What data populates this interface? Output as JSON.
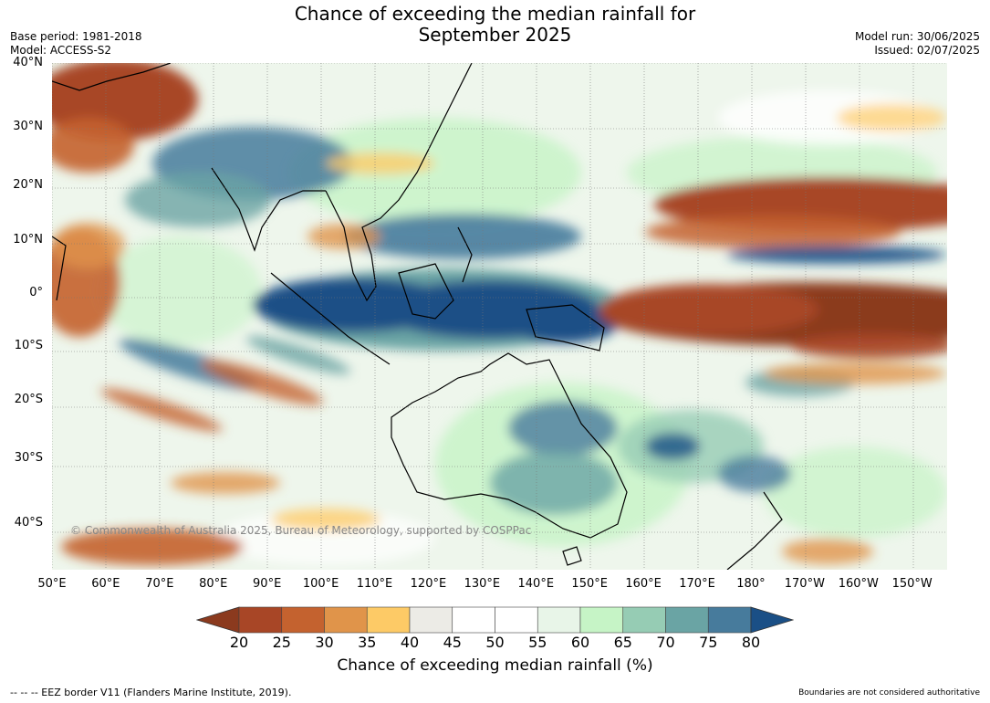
{
  "title_line1": "Chance of exceeding the median rainfall for",
  "title_line2": "September 2025",
  "meta_left": [
    "Base period: 1981-2018",
    "Model: ACCESS-S2"
  ],
  "meta_right": [
    "Model run: 30/06/2025",
    "Issued: 02/07/2025"
  ],
  "copyright": "© Commonwealth of Australia 2025, Bureau of Meteorology, supported by COSPPac",
  "lat_labels": [
    "40°N",
    "30°N",
    "20°N",
    "10°N",
    "0°",
    "10°S",
    "20°S",
    "30°S",
    "40°S"
  ],
  "lat_values": [
    40,
    30,
    20,
    10,
    0,
    -10,
    -20,
    -30,
    -40
  ],
  "lon_labels": [
    "50°E",
    "60°E",
    "70°E",
    "80°E",
    "90°E",
    "100°E",
    "110°E",
    "120°E",
    "130°E",
    "140°E",
    "150°E",
    "160°E",
    "170°E",
    "180°",
    "170°W",
    "160°W",
    "150°W"
  ],
  "lon_values": [
    50,
    60,
    70,
    80,
    90,
    100,
    110,
    120,
    130,
    140,
    150,
    160,
    170,
    180,
    190,
    200,
    210
  ],
  "colorbar": {
    "ticks": [
      "20",
      "25",
      "30",
      "35",
      "40",
      "45",
      "50",
      "55",
      "60",
      "65",
      "70",
      "75",
      "80"
    ],
    "under_color": "#8b3a1e",
    "over_color": "#1a4f86",
    "colors": [
      "#a84626",
      "#c4622f",
      "#e0944a",
      "#fdca66",
      "#ecebe6",
      "#ffffff",
      "#ffffff",
      "#e8f5e8",
      "#c6f4c6",
      "#96ccb4",
      "#6aa4a4",
      "#477b9c"
    ],
    "label": "Chance of exceeding median rainfall (%)"
  },
  "footer_left": "--  --  -- EEZ border V11 (Flanders Marine Institute, 2019).",
  "footer_right": "Boundaries are not considered authoritative"
}
